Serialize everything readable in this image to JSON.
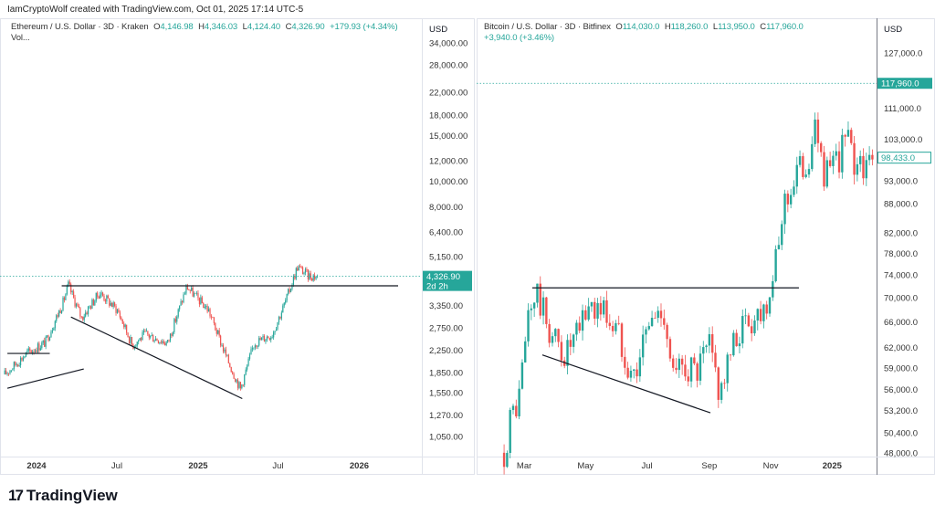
{
  "credit": "IamCryptoWolf created with TradingView.com, Oct 01, 2025 17:14 UTC-5",
  "logo": {
    "mark": "17",
    "text": "TradingView"
  },
  "colors": {
    "up": "#26a69a",
    "down": "#ef5350",
    "line": "#131722",
    "grid": "#e0e3eb"
  },
  "chart_data": [
    {
      "type": "candlestick",
      "title": "Ethereum / U.S. Dollar · 3D · Kraken",
      "legend": {
        "o_label": "O",
        "o": "4,146.98",
        "h_label": "H",
        "h": "4,346.03",
        "l_label": "L",
        "l": "4,124.40",
        "c_label": "C",
        "c": "4,326.90",
        "change": "+179.93 (+4.34%)",
        "extra": "Vol..."
      },
      "currency": "USD",
      "scale": "log",
      "y_ticks": [
        34000,
        28000,
        22000,
        18000,
        15000,
        12000,
        10000,
        8000,
        6400,
        5150,
        3350,
        2750,
        2250,
        1850,
        1550,
        1270,
        1050
      ],
      "y_tick_labels": [
        "34,000.00",
        "28,000.00",
        "22,000.00",
        "18,000.00",
        "15,000.00",
        "12,000.00",
        "10,000.00",
        "8,000.00",
        "6,400.00",
        "5,150.00",
        "3,350.00",
        "2,750.00",
        "2,250.00",
        "1,850.00",
        "1,550.00",
        "1,270.00",
        "1,050.00"
      ],
      "x_ticks": [
        {
          "label": "2024",
          "date": "2024-01-01",
          "bold": true
        },
        {
          "label": "Jul",
          "date": "2024-07-01",
          "bold": false
        },
        {
          "label": "2025",
          "date": "2025-01-01",
          "bold": true
        },
        {
          "label": "Jul",
          "date": "2025-07-01",
          "bold": false
        },
        {
          "label": "2026",
          "date": "2026-01-01",
          "bold": true
        }
      ],
      "last_price": 4326.9,
      "last_price_label": "4,326.90",
      "countdown": "2d 2h",
      "price_path": [
        [
          "2023-10-21",
          1820
        ],
        [
          "2023-12-11",
          2200
        ],
        [
          "2024-01-21",
          2415
        ],
        [
          "2024-03-02",
          3470
        ],
        [
          "2024-03-13",
          4000
        ],
        [
          "2024-04-12",
          3000
        ],
        [
          "2024-05-23",
          3750
        ],
        [
          "2024-07-03",
          3200
        ],
        [
          "2024-08-05",
          2350
        ],
        [
          "2024-09-03",
          2600
        ],
        [
          "2024-10-24",
          2400
        ],
        [
          "2024-12-06",
          3950
        ],
        [
          "2025-01-25",
          3200
        ],
        [
          "2025-03-07",
          2100
        ],
        [
          "2025-04-07",
          1600
        ],
        [
          "2025-05-08",
          2400
        ],
        [
          "2025-06-18",
          2600
        ],
        [
          "2025-07-19",
          3500
        ],
        [
          "2025-08-14",
          4710
        ],
        [
          "2025-09-08",
          4350
        ],
        [
          "2025-09-30",
          4327
        ]
      ],
      "trendlines": [
        {
          "from": [
            "2024-02-27",
            3980
          ],
          "to": [
            "2026-03-30",
            3980
          ]
        },
        {
          "from": [
            "2024-03-19",
            3020
          ],
          "to": [
            "2025-04-11",
            1470
          ]
        },
        {
          "from": [
            "2023-10-27",
            2190
          ],
          "to": [
            "2024-01-31",
            2190
          ]
        },
        {
          "from": [
            "2023-10-27",
            1610
          ],
          "to": [
            "2024-04-17",
            1910
          ]
        }
      ]
    },
    {
      "type": "candlestick",
      "title": "Bitcoin / U.S. Dollar · 3D · Bitfinex",
      "legend": {
        "o_label": "O",
        "o": "114,030.0",
        "h_label": "H",
        "h": "118,260.0",
        "l_label": "L",
        "l": "113,950.0",
        "c_label": "C",
        "c": "117,960.0",
        "change": "+3,940.0 (+3.46%)"
      },
      "currency": "USD",
      "scale": "log",
      "y_ticks": [
        127000,
        111000,
        103000,
        93000,
        88000,
        82000,
        78000,
        74000,
        70000,
        66000,
        62000,
        59000,
        56000,
        53200,
        50400,
        48000
      ],
      "y_tick_labels": [
        "127,000.0",
        "111,000.0",
        "103,000.0",
        "93,000.0",
        "88,000.0",
        "82,000.0",
        "78,000.0",
        "74,000.0",
        "70,000.0",
        "66,000.0",
        "62,000.0",
        "59,000.0",
        "56,000.0",
        "53,200.0",
        "50,400.0",
        "48,000.0"
      ],
      "x_ticks": [
        {
          "label": "Mar",
          "date": "2024-03-01",
          "bold": false
        },
        {
          "label": "May",
          "date": "2024-05-01",
          "bold": false
        },
        {
          "label": "Jul",
          "date": "2024-07-01",
          "bold": false
        },
        {
          "label": "Sep",
          "date": "2024-09-01",
          "bold": false
        },
        {
          "label": "Nov",
          "date": "2024-11-01",
          "bold": false
        },
        {
          "label": "2025",
          "date": "2025-01-01",
          "bold": true
        }
      ],
      "last_price": 117960.0,
      "last_price_label": "117,960.0",
      "visible_close": 98433.0,
      "visible_close_label": "98,433.0",
      "price_path": [
        [
          "2024-02-10",
          48000
        ],
        [
          "2024-02-16",
          52000
        ],
        [
          "2024-02-25",
          55000
        ],
        [
          "2024-03-05",
          67000
        ],
        [
          "2024-03-13",
          71000
        ],
        [
          "2024-03-25",
          65000
        ],
        [
          "2024-04-09",
          61000
        ],
        [
          "2024-04-21",
          63000
        ],
        [
          "2024-05-04",
          69000
        ],
        [
          "2024-05-19",
          68000
        ],
        [
          "2024-06-03",
          64000
        ],
        [
          "2024-06-18",
          58000
        ],
        [
          "2024-07-03",
          66000
        ],
        [
          "2024-07-18",
          68000
        ],
        [
          "2024-07-28",
          57000
        ],
        [
          "2024-08-07",
          60000
        ],
        [
          "2024-08-19",
          58000
        ],
        [
          "2024-09-01",
          62000
        ],
        [
          "2024-09-11",
          56000
        ],
        [
          "2024-09-21",
          60000
        ],
        [
          "2024-10-01",
          65000
        ],
        [
          "2024-10-16",
          67000
        ],
        [
          "2024-10-26",
          69000
        ],
        [
          "2024-10-31",
          72000
        ],
        [
          "2024-11-07",
          76000
        ],
        [
          "2024-11-13",
          88000
        ],
        [
          "2024-11-20",
          91000
        ],
        [
          "2024-11-27",
          95000
        ],
        [
          "2024-12-05",
          97000
        ],
        [
          "2024-12-11",
          100000
        ],
        [
          "2024-12-16",
          106000
        ],
        [
          "2024-12-22",
          97000
        ],
        [
          "2024-12-28",
          94000
        ],
        [
          "2025-01-04",
          96000
        ],
        [
          "2025-01-10",
          101000
        ],
        [
          "2025-01-16",
          104000
        ],
        [
          "2025-01-22",
          96000
        ],
        [
          "2025-01-28",
          100000
        ],
        [
          "2025-02-03",
          95000
        ],
        [
          "2025-02-11",
          98433
        ]
      ],
      "trendlines": [
        {
          "from": [
            "2024-03-09",
            71700
          ],
          "to": [
            "2024-11-29",
            71700
          ]
        },
        {
          "from": [
            "2024-03-19",
            60900
          ],
          "to": [
            "2024-09-02",
            52900
          ]
        }
      ]
    }
  ]
}
